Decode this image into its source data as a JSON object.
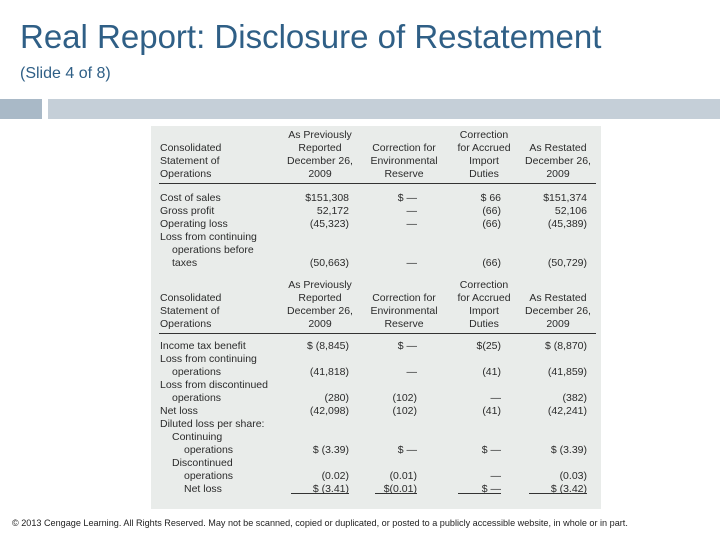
{
  "slide": {
    "title": "Real Report: Disclosure of Restatement",
    "subtitle": "(Slide 4 of 8)",
    "footer": "© 2013 Cengage Learning. All Rights Reserved. May not be scanned, copied or duplicated, or posted to a publicly accessible website, in whole or in part."
  },
  "table1": {
    "h_label": [
      "Consolidated",
      "Statement of",
      "Operations"
    ],
    "h_prev": [
      "As Previously",
      "Reported",
      "December 26,",
      "2009"
    ],
    "h_env": [
      "Correction for",
      "Environmental",
      "Reserve"
    ],
    "h_duty": [
      "Correction",
      "for Accrued",
      "Import",
      "Duties"
    ],
    "h_rest": [
      "As Restated",
      "December 26,",
      "2009"
    ],
    "rows": [
      {
        "label": "Cost of sales",
        "prev": "$151,308",
        "env": "$  —",
        "duty": "$ 66",
        "rest": "$151,374"
      },
      {
        "label": "Gross profit",
        "prev": "52,172",
        "env": "—",
        "duty": "(66)",
        "rest": "52,106"
      },
      {
        "label": "Operating loss",
        "prev": "(45,323)",
        "env": "—",
        "duty": "(66)",
        "rest": "(45,389)"
      },
      {
        "label": "Loss from continuing",
        "prev": "",
        "env": "",
        "duty": "",
        "rest": ""
      },
      {
        "label": "operations before",
        "prev": "",
        "env": "",
        "duty": "",
        "rest": ""
      },
      {
        "label": "taxes",
        "prev": "(50,663)",
        "env": "—",
        "duty": "(66)",
        "rest": "(50,729)"
      }
    ]
  },
  "table2": {
    "h_label": [
      "Consolidated",
      "Statement of",
      "Operations"
    ],
    "h_prev": [
      "As Previously",
      "Reported",
      "December 26,",
      "2009"
    ],
    "h_env": [
      "Correction for",
      "Environmental",
      "Reserve"
    ],
    "h_duty": [
      "Correction",
      "for Accrued",
      "Import",
      "Duties"
    ],
    "h_rest": [
      "As Restated",
      "December 26,",
      "2009"
    ],
    "rows": [
      {
        "label": "Income tax benefit",
        "prev": "$   (8,845)",
        "env": "$  —",
        "duty": "$(25)",
        "rest": "$   (8,870)"
      },
      {
        "label": "Loss from continuing",
        "prev": "",
        "env": "",
        "duty": "",
        "rest": ""
      },
      {
        "label": "operations",
        "prev": "(41,818)",
        "env": "—",
        "duty": "(41)",
        "rest": "(41,859)"
      },
      {
        "label": "Loss from discontinued",
        "prev": "",
        "env": "",
        "duty": "",
        "rest": ""
      },
      {
        "label": "operations",
        "prev": "(280)",
        "env": "(102)",
        "duty": "—",
        "rest": "(382)"
      },
      {
        "label": "Net loss",
        "prev": "(42,098)",
        "env": "(102)",
        "duty": "(41)",
        "rest": "(42,241)"
      },
      {
        "label": "Diluted loss per share:",
        "prev": "",
        "env": "",
        "duty": "",
        "rest": ""
      },
      {
        "label": "Continuing",
        "prev": "",
        "env": "",
        "duty": "",
        "rest": ""
      },
      {
        "label": "operations",
        "prev": "$   (3.39)",
        "env": "$  —",
        "duty": "$ —",
        "rest": "$   (3.39)"
      },
      {
        "label": "Discontinued",
        "prev": "",
        "env": "",
        "duty": "",
        "rest": ""
      },
      {
        "label": "operations",
        "prev": "(0.02)",
        "env": "(0.01)",
        "duty": "—",
        "rest": "(0.03)"
      },
      {
        "label": "Net loss",
        "prev": "$   (3.41)",
        "env": "$(0.01)",
        "duty": "$ —",
        "rest": "$   (3.42)"
      }
    ]
  }
}
